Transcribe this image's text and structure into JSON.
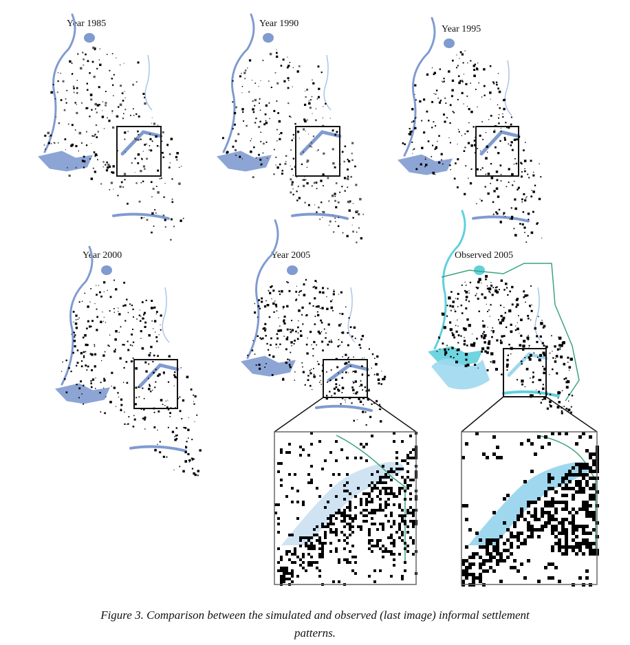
{
  "panels": [
    {
      "title": "Year 1985"
    },
    {
      "title": "Year 1990"
    },
    {
      "title": "Year 1995"
    },
    {
      "title": "Year 2000"
    },
    {
      "title": "Year 2005"
    },
    {
      "title": "Observed 2005"
    }
  ],
  "caption": {
    "line1": "Figure 3.  Comparison between the simulated and observed (last image) informal settlement",
    "line2": "patterns."
  },
  "colors": {
    "water": "#7f9bd0",
    "water_light": "#a9c4e8",
    "observed_water": "#9fd8ee",
    "observed_boundary": "#3aa37a",
    "observed_cyan": "#5fd0dd",
    "settlement": "#000000",
    "settlement_gray": "#555555",
    "frame": "#111111"
  }
}
